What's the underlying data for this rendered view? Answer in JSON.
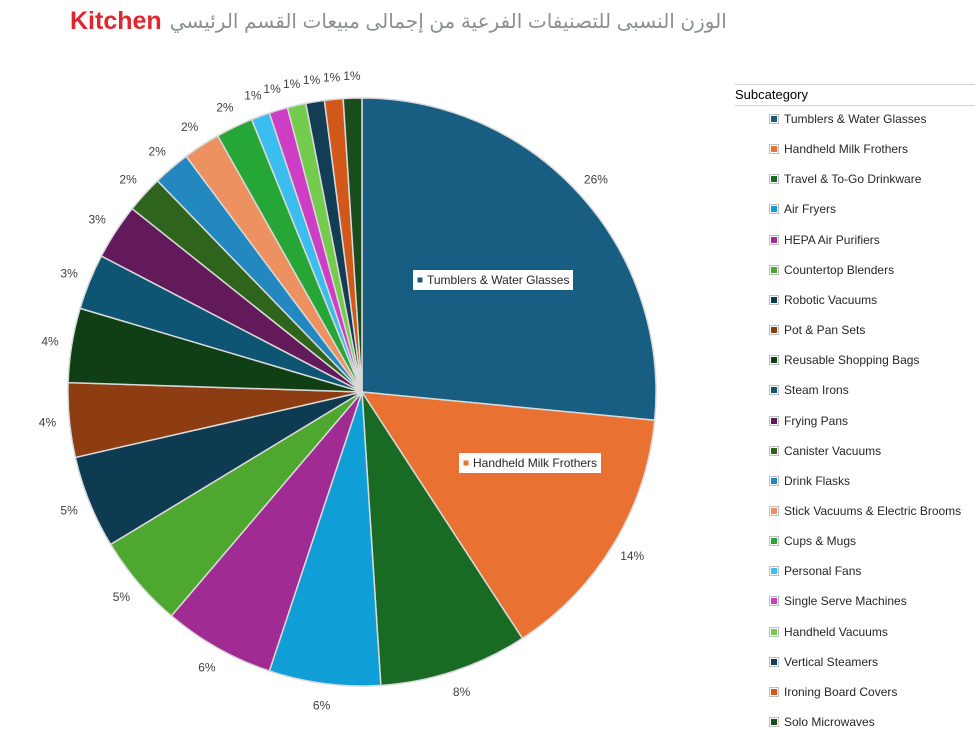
{
  "title": {
    "highlight": "Kitchen",
    "text": "الوزن النسبى للتصنيفات الفرعية من إجمالى مبيعات القسم الرئيسي"
  },
  "chart_data": {
    "type": "pie",
    "title": "Kitchen الوزن النسبى للتصنيفات الفرعية من إجمالى مبيعات القسم الرئيسي",
    "legend_title": "Subcategory",
    "legend_position": "right",
    "categories": [
      "Tumblers & Water Glasses",
      "Handheld Milk Frothers",
      "Travel & To-Go Drinkware",
      "Air Fryers",
      "HEPA Air Purifiers",
      "Countertop Blenders",
      "Robotic Vacuums",
      "Pot & Pan Sets",
      "Reusable Shopping Bags",
      "Steam Irons",
      "Frying Pans",
      "Canister Vacuums",
      "Drink Flasks",
      "Stick Vacuums & Electric Brooms",
      "Cups & Mugs",
      "Personal Fans",
      "Single Serve Machines",
      "Handheld Vacuums",
      "Vertical Steamers",
      "Ironing Board Covers",
      "Solo Microwaves"
    ],
    "values": [
      26,
      14,
      8,
      6,
      6,
      5,
      5,
      4,
      4,
      3,
      3,
      2,
      2,
      2,
      2,
      1,
      1,
      1,
      1,
      1,
      1
    ],
    "value_labels": [
      "26%",
      "14%",
      "8%",
      "6%",
      "6%",
      "5%",
      "5%",
      "4%",
      "4%",
      "3%",
      "3%",
      "2%",
      "2%",
      "2%",
      "2%",
      "1%",
      "1%",
      "1%",
      "1%",
      "1%",
      "1%"
    ],
    "colors": [
      "#175e82",
      "#e97132",
      "#196b24",
      "#0f9ed5",
      "#a02b93",
      "#4ea72e",
      "#0e3a52",
      "#8d3d11",
      "#103f16",
      "#0e5574",
      "#621a5a",
      "#2e641c",
      "#2288bf",
      "#ed9161",
      "#26a636",
      "#3bbdef",
      "#cd3ec4",
      "#73cc4c",
      "#123d54",
      "#d2581a",
      "#1a4d1e"
    ],
    "callouts": [
      "Tumblers & Water Glasses",
      "Handheld Milk Frothers"
    ]
  }
}
